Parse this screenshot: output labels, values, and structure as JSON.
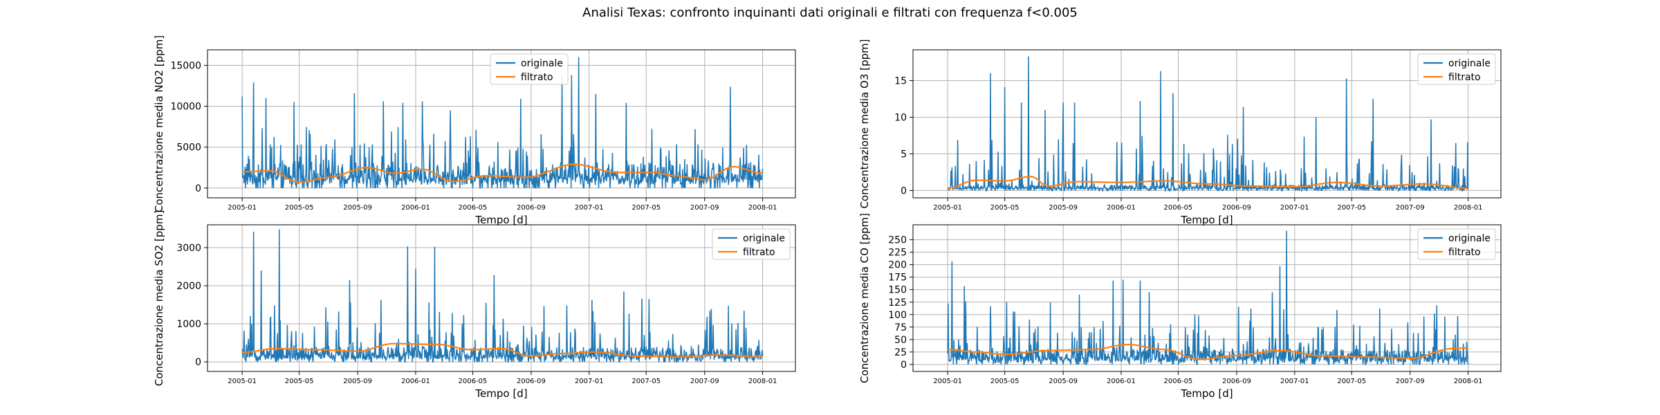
{
  "figure": {
    "suptitle": "Analisi Texas: confronto inquinanti dati originali e filtrati con frequenza f<0.005"
  },
  "colors": {
    "originale": "#1f77b4",
    "filtrato": "#ff7f0e",
    "grid": "#b0b0b0"
  },
  "chart_data": [
    {
      "type": "line",
      "xlabel": "Tempo [d]",
      "ylabel": "Concentrazione media NO2 [ppm]",
      "x_tick_labels": [
        "2005-01",
        "2005-05",
        "2005-09",
        "2006-01",
        "2006-05",
        "2006-09",
        "2007-01",
        "2007-05",
        "2007-09",
        "2008-01"
      ],
      "xlim": [
        "2004-10-20",
        "2008-03-10"
      ],
      "yticks": [
        0,
        5000,
        10000,
        15000
      ],
      "ylim": [
        -1200,
        16900
      ],
      "legend": {
        "loc": "upper-center",
        "entries": [
          "originale",
          "filtrato"
        ]
      },
      "grid": true,
      "series": [
        {
          "name": "originale",
          "noisy": true,
          "base": 2000,
          "spread": 3500,
          "max_peak": 16000,
          "peaks": [
            [
              "2005-01-01",
              11200
            ],
            [
              "2005-01-25",
              12900
            ],
            [
              "2005-02-20",
              11000
            ],
            [
              "2005-04-20",
              10500
            ],
            [
              "2005-08-25",
              11600
            ],
            [
              "2005-10-25",
              10600
            ],
            [
              "2005-12-05",
              10400
            ],
            [
              "2006-01-15",
              10600
            ],
            [
              "2006-03-15",
              9500
            ],
            [
              "2006-08-10",
              10900
            ],
            [
              "2006-11-05",
              13700
            ],
            [
              "2006-11-25",
              13800
            ],
            [
              "2006-12-10",
              16000
            ],
            [
              "2007-01-15",
              11500
            ],
            [
              "2007-03-20",
              10400
            ],
            [
              "2007-10-25",
              12400
            ]
          ]
        },
        {
          "name": "filtrato",
          "noisy": false,
          "points": [
            [
              "2005-01-01",
              2000
            ],
            [
              "2005-03-01",
              2100
            ],
            [
              "2005-05-01",
              700
            ],
            [
              "2005-07-01",
              1300
            ],
            [
              "2005-09-20",
              2500
            ],
            [
              "2005-11-20",
              1800
            ],
            [
              "2006-01-15",
              2300
            ],
            [
              "2006-03-20",
              800
            ],
            [
              "2006-06-01",
              1500
            ],
            [
              "2006-08-20",
              1300
            ],
            [
              "2006-12-01",
              2900
            ],
            [
              "2007-03-01",
              1900
            ],
            [
              "2007-05-15",
              1900
            ],
            [
              "2007-07-01",
              1500
            ],
            [
              "2007-09-01",
              1000
            ],
            [
              "2007-11-01",
              2600
            ],
            [
              "2008-01-01",
              1800
            ]
          ]
        }
      ]
    },
    {
      "type": "line",
      "xlabel": "Tempo [d]",
      "ylabel": "Concentrazione media O3 [ppm]",
      "x_tick_labels": [
        "2005-01",
        "2005-05",
        "2005-09",
        "2006-01",
        "2006-05",
        "2006-09",
        "2007-01",
        "2007-05",
        "2007-09",
        "2008-01"
      ],
      "xlim": [
        "2004-10-20",
        "2008-03-10"
      ],
      "yticks": [
        0,
        5,
        10,
        15
      ],
      "ylim": [
        -1,
        19.2
      ],
      "legend": {
        "loc": "upper-right",
        "entries": [
          "originale",
          "filtrato"
        ]
      },
      "grid": true,
      "series": [
        {
          "name": "originale",
          "noisy": true,
          "base": 0.5,
          "spread": 4,
          "max_peak": 18.3,
          "peaks": [
            [
              "2005-04-01",
              16.0
            ],
            [
              "2005-05-01",
              14.1
            ],
            [
              "2005-06-05",
              12.0
            ],
            [
              "2005-06-20",
              18.3
            ],
            [
              "2005-07-25",
              11.0
            ],
            [
              "2005-09-01",
              12.0
            ],
            [
              "2005-09-25",
              12.0
            ],
            [
              "2006-02-10",
              12.2
            ],
            [
              "2006-03-25",
              16.3
            ],
            [
              "2006-04-20",
              13.3
            ],
            [
              "2006-09-15",
              11.4
            ],
            [
              "2007-02-15",
              10.0
            ],
            [
              "2007-04-20",
              15.3
            ],
            [
              "2007-06-15",
              12.5
            ],
            [
              "2007-10-15",
              9.7
            ]
          ]
        },
        {
          "name": "filtrato",
          "noisy": false,
          "points": [
            [
              "2005-01-01",
              0.3
            ],
            [
              "2005-03-01",
              1.4
            ],
            [
              "2005-05-01",
              1.3
            ],
            [
              "2005-06-25",
              1.9
            ],
            [
              "2005-08-01",
              0.6
            ],
            [
              "2005-10-01",
              1.2
            ],
            [
              "2006-01-01",
              1.1
            ],
            [
              "2006-04-01",
              1.3
            ],
            [
              "2006-07-01",
              0.9
            ],
            [
              "2006-10-01",
              0.6
            ],
            [
              "2007-01-01",
              0.5
            ],
            [
              "2007-04-01",
              1.1
            ],
            [
              "2007-07-01",
              0.6
            ],
            [
              "2007-10-01",
              0.9
            ],
            [
              "2008-01-01",
              0.3
            ]
          ]
        }
      ]
    },
    {
      "type": "line",
      "xlabel": "Tempo [d]",
      "ylabel": "Concentrazione media SO2 [ppm]",
      "x_tick_labels": [
        "2005-01",
        "2005-05",
        "2005-09",
        "2006-01",
        "2006-05",
        "2006-09",
        "2007-01",
        "2007-05",
        "2007-09",
        "2008-01"
      ],
      "xlim": [
        "2004-10-20",
        "2008-03-10"
      ],
      "yticks": [
        0,
        1000,
        2000,
        3000
      ],
      "ylim": [
        -250,
        3600
      ],
      "legend": {
        "loc": "upper-right",
        "entries": [
          "originale",
          "filtrato"
        ]
      },
      "grid": true,
      "series": [
        {
          "name": "originale",
          "noisy": true,
          "base": 250,
          "spread": 800,
          "max_peak": 3480,
          "peaks": [
            [
              "2005-01-25",
              3420
            ],
            [
              "2005-02-10",
              2400
            ],
            [
              "2005-03-20",
              3480
            ],
            [
              "2005-08-15",
              2150
            ],
            [
              "2005-12-15",
              3030
            ],
            [
              "2006-01-01",
              2450
            ],
            [
              "2006-02-10",
              3020
            ],
            [
              "2006-06-15",
              2280
            ],
            [
              "2006-11-15",
              1480
            ],
            [
              "2007-03-15",
              1850
            ],
            [
              "2007-09-15",
              1390
            ],
            [
              "2007-11-10",
              1020
            ]
          ]
        },
        {
          "name": "filtrato",
          "noisy": false,
          "points": [
            [
              "2005-01-01",
              250
            ],
            [
              "2005-03-15",
              350
            ],
            [
              "2005-06-01",
              320
            ],
            [
              "2005-09-01",
              280
            ],
            [
              "2005-11-15",
              480
            ],
            [
              "2006-02-15",
              460
            ],
            [
              "2006-05-01",
              320
            ],
            [
              "2006-07-01",
              350
            ],
            [
              "2006-09-01",
              150
            ],
            [
              "2006-11-01",
              220
            ],
            [
              "2007-01-15",
              260
            ],
            [
              "2007-04-15",
              150
            ],
            [
              "2007-07-01",
              130
            ],
            [
              "2007-10-01",
              180
            ],
            [
              "2008-01-01",
              130
            ]
          ]
        }
      ]
    },
    {
      "type": "line",
      "xlabel": "Tempo [d]",
      "ylabel": "Concentrazione media CO [ppm]",
      "x_tick_labels": [
        "2005-01",
        "2005-05",
        "2005-09",
        "2006-01",
        "2006-05",
        "2006-09",
        "2007-01",
        "2007-05",
        "2007-09",
        "2008-01"
      ],
      "xlim": [
        "2004-10-20",
        "2008-03-10"
      ],
      "yticks": [
        0,
        25,
        50,
        75,
        100,
        125,
        150,
        175,
        200,
        225,
        250
      ],
      "ylim": [
        -14,
        280
      ],
      "legend": {
        "loc": "upper-right",
        "entries": [
          "originale",
          "filtrato"
        ]
      },
      "grid": true,
      "series": [
        {
          "name": "originale",
          "noisy": true,
          "base": 20,
          "spread": 60,
          "max_peak": 268,
          "peaks": [
            [
              "2005-01-10",
              207
            ],
            [
              "2005-02-05",
              157
            ],
            [
              "2005-05-05",
              125
            ],
            [
              "2005-10-05",
              140
            ],
            [
              "2005-12-15",
              168
            ],
            [
              "2006-01-05",
              170
            ],
            [
              "2006-02-10",
              168
            ],
            [
              "2006-03-01",
              145
            ],
            [
              "2006-06-05",
              100
            ],
            [
              "2006-11-15",
              145
            ],
            [
              "2006-12-01",
              197
            ],
            [
              "2006-12-15",
              268
            ],
            [
              "2007-05-05",
              80
            ],
            [
              "2007-12-10",
              97
            ]
          ]
        },
        {
          "name": "filtrato",
          "noisy": false,
          "points": [
            [
              "2005-01-01",
              30
            ],
            [
              "2005-03-01",
              25
            ],
            [
              "2005-05-01",
              20
            ],
            [
              "2005-08-01",
              28
            ],
            [
              "2005-11-01",
              30
            ],
            [
              "2006-01-15",
              40
            ],
            [
              "2006-04-01",
              30
            ],
            [
              "2006-06-15",
              10
            ],
            [
              "2006-09-01",
              18
            ],
            [
              "2006-12-01",
              28
            ],
            [
              "2007-03-01",
              17
            ],
            [
              "2007-06-01",
              15
            ],
            [
              "2007-09-01",
              12
            ],
            [
              "2007-12-01",
              32
            ],
            [
              "2008-01-01",
              33
            ]
          ]
        }
      ]
    }
  ]
}
